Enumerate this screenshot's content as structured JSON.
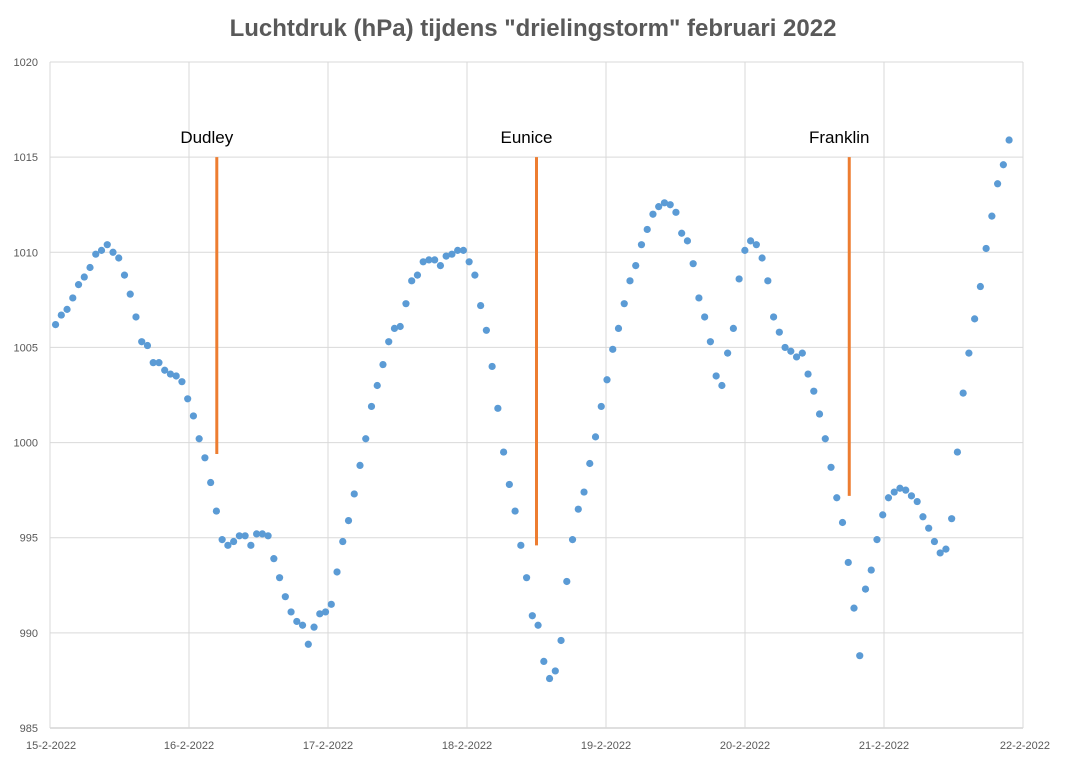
{
  "chart_data": {
    "type": "scatter",
    "title": "Luchtdruk (hPa) tijdens \"drielingstorm\" februari 2022",
    "xlabel": "",
    "ylabel": "",
    "ylim": [
      985,
      1020
    ],
    "yticks": [
      985,
      990,
      995,
      1000,
      1005,
      1010,
      1015,
      1020
    ],
    "xticks": [
      "15-2-2022",
      "16-2-2022",
      "17-2-2022",
      "18-2-2022",
      "19-2-2022",
      "20-2-2022",
      "21-2-2022",
      "22-2-2022"
    ],
    "grid": true,
    "marker_color": "#5B9BD5",
    "annotation_color": "#ED7D31",
    "series": [
      {
        "values": [
          1006.2,
          1006.7,
          1007.0,
          1007.6,
          1008.3,
          1008.7,
          1009.2,
          1009.9,
          1010.1,
          1010.4,
          1010.0,
          1009.7,
          1008.8,
          1007.8,
          1006.6,
          1005.3,
          1005.1,
          1004.2,
          1004.2,
          1003.8,
          1003.6,
          1003.5,
          1003.2,
          1002.3,
          1001.4,
          1000.2,
          999.2,
          997.9,
          996.4,
          994.9,
          994.6,
          994.8,
          995.1,
          995.1,
          994.6,
          995.2,
          995.2,
          995.1,
          993.9,
          992.9,
          991.9,
          991.1,
          990.6,
          990.4,
          989.4,
          990.3,
          991.0,
          991.1,
          991.5,
          993.2,
          994.8,
          995.9,
          997.3,
          998.8,
          1000.2,
          1001.9,
          1003.0,
          1004.1,
          1005.3,
          1006.0,
          1006.1,
          1007.3,
          1008.5,
          1008.8,
          1009.5,
          1009.6,
          1009.6,
          1009.3,
          1009.8,
          1009.9,
          1010.1,
          1010.1,
          1009.5,
          1008.8,
          1007.2,
          1005.9,
          1004.0,
          1001.8,
          999.5,
          997.8,
          996.4,
          994.6,
          992.9,
          990.9,
          990.4,
          988.5,
          987.6,
          988.0,
          989.6,
          992.7,
          994.9,
          996.5,
          997.4,
          998.9,
          1000.3,
          1001.9,
          1003.3,
          1004.9,
          1006.0,
          1007.3,
          1008.5,
          1009.3,
          1010.4,
          1011.2,
          1012.0,
          1012.4,
          1012.6,
          1012.5,
          1012.1,
          1011.0,
          1010.6,
          1009.4,
          1007.6,
          1006.6,
          1005.3,
          1003.5,
          1003.0,
          1004.7,
          1006.0,
          1008.6,
          1010.1,
          1010.6,
          1010.4,
          1009.7,
          1008.5,
          1006.6,
          1005.8,
          1005.0,
          1004.8,
          1004.5,
          1004.7,
          1003.6,
          1002.7,
          1001.5,
          1000.2,
          998.7,
          997.1,
          995.8,
          993.7,
          991.3,
          988.8,
          992.3,
          993.3,
          994.9,
          996.2,
          997.1,
          997.4,
          997.6,
          997.5,
          997.2,
          996.9,
          996.1,
          995.5,
          994.8,
          994.2,
          994.4,
          996.0,
          999.5,
          1002.6,
          1004.7,
          1006.5,
          1008.2,
          1010.2,
          1011.9,
          1013.6,
          1014.6,
          1015.9
        ]
      }
    ],
    "annotations": [
      {
        "label": "Dudley",
        "x_days": 1.2,
        "y_top": 1015.0,
        "y_bottom": 999.4
      },
      {
        "label": "Eunice",
        "x_days": 3.5,
        "y_top": 1015.0,
        "y_bottom": 994.6
      },
      {
        "label": "Franklin",
        "x_days": 5.75,
        "y_top": 1015.0,
        "y_bottom": 997.2
      }
    ]
  }
}
